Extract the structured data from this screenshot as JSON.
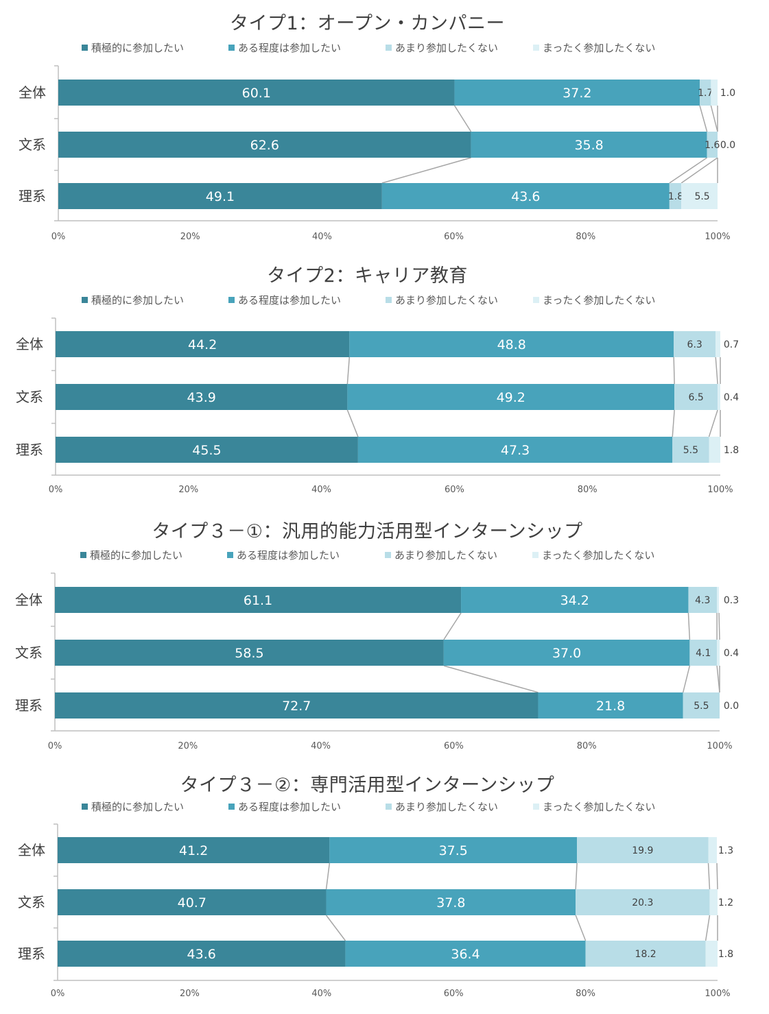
{
  "colors": {
    "series": [
      "#3a8699",
      "#48a3bb",
      "#b8dde7",
      "#dcf0f5"
    ],
    "axis": "#bfbfbf",
    "connector": "#a6a6a6",
    "text": "#404040",
    "tick": "#595959"
  },
  "legend_labels": [
    "積極的に参加したい",
    "ある程度は参加したい",
    "あまり参加したくない",
    "まったく参加したくない"
  ],
  "x_ticks": [
    "0%",
    "20%",
    "40%",
    "60%",
    "80%",
    "100%"
  ],
  "chart_data": [
    {
      "type": "bar",
      "orientation": "horizontal-stacked-percent",
      "title": "タイプ1：オープン・カンパニー",
      "categories": [
        "全体",
        "文系",
        "理系"
      ],
      "xlim": [
        0,
        100
      ],
      "legend": "top",
      "series": [
        {
          "name": "積極的に参加したい",
          "values": [
            60.1,
            62.6,
            49.1
          ]
        },
        {
          "name": "ある程度は参加したい",
          "values": [
            37.2,
            35.8,
            43.6
          ]
        },
        {
          "name": "あまり参加したくない",
          "values": [
            1.7,
            1.6,
            1.8
          ]
        },
        {
          "name": "まったく参加したくない",
          "values": [
            1.0,
            0.0,
            5.5
          ]
        }
      ]
    },
    {
      "type": "bar",
      "orientation": "horizontal-stacked-percent",
      "title": "タイプ2：キャリア教育",
      "categories": [
        "全体",
        "文系",
        "理系"
      ],
      "xlim": [
        0,
        100
      ],
      "legend": "top",
      "series": [
        {
          "name": "積極的に参加したい",
          "values": [
            44.2,
            43.9,
            45.5
          ]
        },
        {
          "name": "ある程度は参加したい",
          "values": [
            48.8,
            49.2,
            47.3
          ]
        },
        {
          "name": "あまり参加したくない",
          "values": [
            6.3,
            6.5,
            5.5
          ]
        },
        {
          "name": "まったく参加したくない",
          "values": [
            0.7,
            0.4,
            1.8
          ]
        }
      ]
    },
    {
      "type": "bar",
      "orientation": "horizontal-stacked-percent",
      "title": "タイプ３－①：汎用的能力活用型インターンシップ",
      "categories": [
        "全体",
        "文系",
        "理系"
      ],
      "xlim": [
        0,
        100
      ],
      "legend": "top",
      "series": [
        {
          "name": "積極的に参加したい",
          "values": [
            61.1,
            58.5,
            72.7
          ]
        },
        {
          "name": "ある程度は参加したい",
          "values": [
            34.2,
            37.0,
            21.8
          ]
        },
        {
          "name": "あまり参加したくない",
          "values": [
            4.3,
            4.1,
            5.5
          ]
        },
        {
          "name": "まったく参加したくない",
          "values": [
            0.3,
            0.4,
            0.0
          ]
        }
      ]
    },
    {
      "type": "bar",
      "orientation": "horizontal-stacked-percent",
      "title": "タイプ３－②：専門活用型インターンシップ",
      "categories": [
        "全体",
        "文系",
        "理系"
      ],
      "xlim": [
        0,
        100
      ],
      "legend": "top",
      "series": [
        {
          "name": "積極的に参加したい",
          "values": [
            41.2,
            40.7,
            43.6
          ]
        },
        {
          "name": "ある程度は参加したい",
          "values": [
            37.5,
            37.8,
            36.4
          ]
        },
        {
          "name": "あまり参加したくない",
          "values": [
            19.9,
            20.3,
            18.2
          ]
        },
        {
          "name": "まったく参加したくない",
          "values": [
            1.3,
            1.2,
            1.8
          ]
        }
      ]
    }
  ]
}
